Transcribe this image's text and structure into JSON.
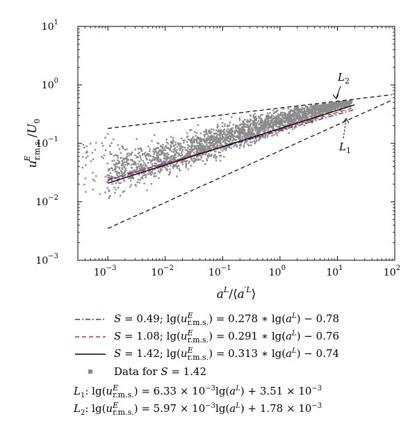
{
  "chart_data": {
    "type": "scatter",
    "xscale": "log",
    "yscale": "log",
    "xlim": [
      0.0003,
      100
    ],
    "ylim": [
      0.001,
      10
    ],
    "xlabel": "a^L/⟨a'^L⟩",
    "ylabel": "u^E_r.m.s./U_0",
    "x_ticks": [
      {
        "value": 0.001,
        "base": "10",
        "exp": "−3"
      },
      {
        "value": 0.01,
        "base": "10",
        "exp": "−2"
      },
      {
        "value": 0.1,
        "base": "10",
        "exp": "−1"
      },
      {
        "value": 1,
        "base": "10",
        "exp": "0"
      },
      {
        "value": 10,
        "base": "10",
        "exp": "1"
      },
      {
        "value": 100,
        "base": "10",
        "exp": "2"
      }
    ],
    "y_ticks": [
      {
        "value": 0.001,
        "base": "10",
        "exp": "−3"
      },
      {
        "value": 0.01,
        "base": "10",
        "exp": "−2"
      },
      {
        "value": 0.1,
        "base": "10",
        "exp": "−1"
      },
      {
        "value": 1,
        "base": "10",
        "exp": "0"
      },
      {
        "value": 10,
        "base": "10",
        "exp": "1"
      }
    ],
    "series": [
      {
        "name": "S = 0.49; lg(u^E_r.m.s.) = 0.278 * lg(a^L) − 0.78",
        "style": "dashdot",
        "color": "#2b2bd6",
        "x": [
          0.001,
          20
        ],
        "y": [
          0.0241,
          0.379
        ]
      },
      {
        "name": "S = 1.08; lg(u^E_r.m.s.) = 0.291 * lg(a^L) − 0.76",
        "style": "dashed",
        "color": "#e8262a",
        "x": [
          0.001,
          20
        ],
        "y": [
          0.0231,
          0.414
        ]
      },
      {
        "name": "S = 1.42; lg(u^E_r.m.s.) = 0.313 * lg(a^L) − 0.74",
        "style": "solid",
        "color": "#000000",
        "x": [
          0.001,
          20
        ],
        "y": [
          0.0208,
          0.457
        ]
      },
      {
        "name": "Data for S = 1.42",
        "style": "markers",
        "color": "#8a8a8a"
      }
    ],
    "bounds": [
      {
        "label": "L1",
        "x": [
          0.001,
          90
        ],
        "y": [
          0.0035,
          0.55
        ]
      },
      {
        "label": "L2",
        "x": [
          0.001,
          90
        ],
        "y": [
          0.18,
          0.68
        ]
      }
    ],
    "annotations": [
      {
        "text_main": "L",
        "text_sub": "1",
        "x": 18,
        "y": 0.09
      },
      {
        "text_main": "L",
        "text_sub": "2",
        "x": 18,
        "y": 0.72
      }
    ],
    "equations": [
      {
        "name": "L1",
        "text": "L₁: lg(u^E_r.m.s.) = 6.33 × 10⁻³ lg(a^L) + 3.51 × 10⁻³"
      },
      {
        "name": "L2",
        "text": "L₂: lg(u^E_r.m.s.) = 5.97 × 10⁻³ lg(a^L) + 1.78 × 10⁻³"
      }
    ]
  },
  "legend": {
    "s049": {
      "s_label": "S",
      "s_value": "= 0.49;",
      "prefix": "lg(",
      "u": "u",
      "sup": "E",
      "sub": "r.m.s.",
      "mid": ") = 0.278 ∗ lg(",
      "a": "a",
      "a_sup": "L",
      "tail": ") − 0.78"
    },
    "s108": {
      "s_label": "S",
      "s_value": "= 1.08;",
      "prefix": "lg(",
      "u": "u",
      "sup": "E",
      "sub": "r.m.s.",
      "mid": ") = 0.291 ∗ lg(",
      "a": "a",
      "a_sup": "L",
      "tail": ") − 0.76"
    },
    "s142": {
      "s_label": "S",
      "s_value": "= 1.42;",
      "prefix": "lg(",
      "u": "u",
      "sup": "E",
      "sub": "r.m.s.",
      "mid": ") = 0.313 ∗ lg(",
      "a": "a",
      "a_sup": "L",
      "tail": ") − 0.74"
    },
    "data": {
      "text_pre": "Data for ",
      "s_label": "S",
      "s_value": " = 1.42"
    }
  },
  "equation_rows": {
    "l1": {
      "L": "L",
      "sub": "1",
      "pre": ": lg(",
      "u": "u",
      "sup": "E",
      "usub": "r.m.s.",
      "mid": ") = 6.33 × 10",
      "exp1": "−3",
      "mid2": "lg(",
      "a": "a",
      "a_sup": "L",
      "tail": ") + 3.51 × 10",
      "exp2": "−3"
    },
    "l2": {
      "L": "L",
      "sub": "2",
      "pre": ": lg(",
      "u": "u",
      "sup": "E",
      "usub": "r.m.s.",
      "mid": ") = 5.97 × 10",
      "exp1": "−3",
      "mid2": "lg(",
      "a": "a",
      "a_sup": "L",
      "tail": ") + 1.78 × 10",
      "exp2": "−3"
    }
  },
  "axis": {
    "ylabel_u": "u",
    "ylabel_sup": "E",
    "ylabel_sub": "r.m.s.",
    "ylabel_slash": "/",
    "ylabel_U": "U",
    "ylabel_U_sub": "0",
    "xlabel_a": "a",
    "xlabel_sup": "L",
    "xlabel_slash": "/",
    "xlabel_lang": "⟨",
    "xlabel_a2": "a",
    "xlabel_sup2": "′L",
    "xlabel_rang": "⟩"
  }
}
